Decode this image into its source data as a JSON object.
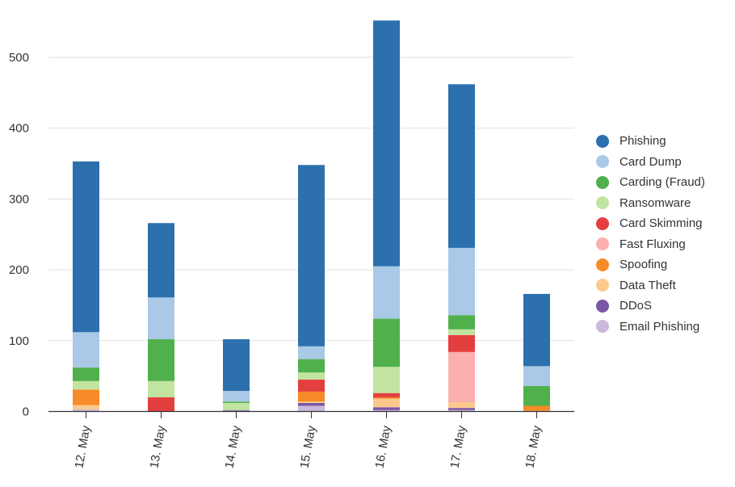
{
  "chart_data": {
    "type": "bar",
    "stacked": true,
    "categories": [
      "12. May",
      "13. May",
      "14. May",
      "15. May",
      "16. May",
      "17. May",
      "18. May"
    ],
    "yticks": [
      "0",
      "100",
      "200",
      "300",
      "400",
      "500"
    ],
    "ylim": [
      0,
      560
    ],
    "grid": true,
    "legend_position": "right",
    "series": [
      {
        "name": "Email Phishing",
        "color": "#cdb8dd",
        "values": [
          3,
          0,
          1,
          8,
          2,
          2,
          0
        ]
      },
      {
        "name": "DDoS",
        "color": "#7b57a6",
        "values": [
          0,
          0,
          1,
          4,
          4,
          3,
          0
        ]
      },
      {
        "name": "Data Theft",
        "color": "#fbc98e",
        "values": [
          6,
          0,
          0,
          2,
          12,
          8,
          1
        ]
      },
      {
        "name": "Spoofing",
        "color": "#f68b27",
        "values": [
          22,
          0,
          0,
          14,
          2,
          0,
          7
        ]
      },
      {
        "name": "Fast Fluxing",
        "color": "#fbafaf",
        "values": [
          0,
          0,
          0,
          0,
          0,
          71,
          0
        ]
      },
      {
        "name": "Card Skimming",
        "color": "#e43f3f",
        "values": [
          0,
          20,
          0,
          17,
          6,
          24,
          0
        ]
      },
      {
        "name": "Ransomware",
        "color": "#c1e4a1",
        "values": [
          12,
          23,
          10,
          10,
          37,
          8,
          0
        ]
      },
      {
        "name": "Carding (Fraud)",
        "color": "#50b04b",
        "values": [
          19,
          59,
          2,
          19,
          68,
          20,
          28
        ]
      },
      {
        "name": "Card Dump",
        "color": "#a9c9e7",
        "values": [
          50,
          59,
          15,
          18,
          74,
          95,
          28
        ]
      },
      {
        "name": "Phishing",
        "color": "#2c70ae",
        "values": [
          241,
          105,
          73,
          256,
          347,
          231,
          102
        ]
      }
    ]
  },
  "legend": [
    {
      "label": "Phishing",
      "color": "#2c70ae"
    },
    {
      "label": "Card Dump",
      "color": "#a9c9e7"
    },
    {
      "label": "Carding (Fraud)",
      "color": "#50b04b"
    },
    {
      "label": "Ransomware",
      "color": "#c1e4a1"
    },
    {
      "label": "Card Skimming",
      "color": "#e43f3f"
    },
    {
      "label": "Fast Fluxing",
      "color": "#fbafaf"
    },
    {
      "label": "Spoofing",
      "color": "#f68b27"
    },
    {
      "label": "Data Theft",
      "color": "#fbc98e"
    },
    {
      "label": "DDoS",
      "color": "#7b57a6"
    },
    {
      "label": "Email Phishing",
      "color": "#cdb8dd"
    }
  ]
}
